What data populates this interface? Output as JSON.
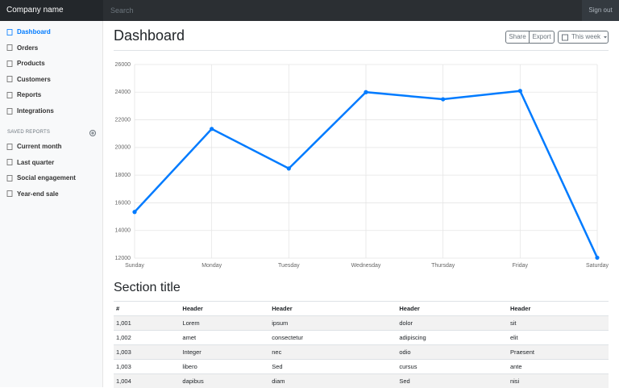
{
  "navbar": {
    "brand": "Company name",
    "search": "Search",
    "sign_out": "Sign out"
  },
  "sidebar": {
    "nav": [
      "Dashboard",
      "Orders",
      "Products",
      "Customers",
      "Reports",
      "Integrations"
    ],
    "saved_reports_heading": "SAVED REPORTS",
    "saved_reports": [
      "Current month",
      "Last quarter",
      "Social engagement",
      "Year-end sale"
    ]
  },
  "header": {
    "title": "Dashboard",
    "buttons": [
      "Share",
      "Export"
    ],
    "dropdown": "This week"
  },
  "chart_data": {
    "type": "line",
    "categories": [
      "Sunday",
      "Monday",
      "Tuesday",
      "Wednesday",
      "Thursday",
      "Friday",
      "Saturday"
    ],
    "series": [
      {
        "color": "#007bff",
        "values": [
          15339,
          21345,
          18483,
          24003,
          23489,
          24092,
          12034
        ]
      }
    ],
    "ylim": [
      12000,
      26000
    ],
    "yticks": [
      12000,
      14000,
      16000,
      18000,
      20000,
      22000,
      24000,
      26000
    ],
    "grid": true
  },
  "table": {
    "section_title": "Section title",
    "columns": [
      "#",
      "Header",
      "Header",
      "Header",
      "Header"
    ],
    "rows": [
      [
        "1,001",
        "Lorem",
        "ipsum",
        "dolor",
        "sit"
      ],
      [
        "1,002",
        "amet",
        "consectetur",
        "adipiscing",
        "elit"
      ],
      [
        "1,003",
        "Integer",
        "nec",
        "odio",
        "Praesent"
      ],
      [
        "1,003",
        "libero",
        "Sed",
        "cursus",
        "ante"
      ],
      [
        "1,004",
        "dapibus",
        "diam",
        "Sed",
        "nisi"
      ]
    ]
  }
}
